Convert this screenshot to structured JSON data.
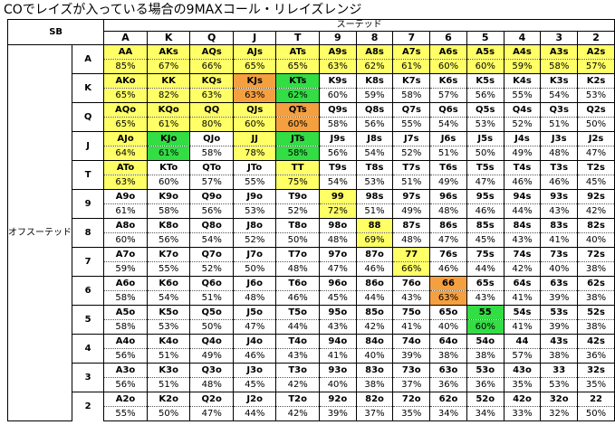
{
  "title": "COでレイズが入っている場合の9MAXコール・リレイズレンジ",
  "header": {
    "position": "SB",
    "suited_label": "スーテッド",
    "offsuit_label": "オフスーテッド"
  },
  "ranks": [
    "A",
    "K",
    "Q",
    "J",
    "T",
    "9",
    "8",
    "7",
    "6",
    "5",
    "4",
    "3",
    "2"
  ],
  "colors": {
    "yellow": "#ffff66",
    "orange": "#f4a040",
    "green": "#33dd44"
  },
  "rows": [
    {
      "label": "A",
      "cells": [
        {
          "h": "AA",
          "p": "85%",
          "c": "y"
        },
        {
          "h": "AKs",
          "p": "67%",
          "c": "y"
        },
        {
          "h": "AQs",
          "p": "66%",
          "c": "y"
        },
        {
          "h": "AJs",
          "p": "65%",
          "c": "y"
        },
        {
          "h": "ATs",
          "p": "65%",
          "c": "y"
        },
        {
          "h": "A9s",
          "p": "63%",
          "c": "y"
        },
        {
          "h": "A8s",
          "p": "62%",
          "c": "y"
        },
        {
          "h": "A7s",
          "p": "61%",
          "c": "y"
        },
        {
          "h": "A6s",
          "p": "60%",
          "c": "y"
        },
        {
          "h": "A5s",
          "p": "60%",
          "c": "y"
        },
        {
          "h": "A4s",
          "p": "59%",
          "c": "y"
        },
        {
          "h": "A3s",
          "p": "58%",
          "c": "y"
        },
        {
          "h": "A2s",
          "p": "57%",
          "c": "y"
        }
      ]
    },
    {
      "label": "K",
      "cells": [
        {
          "h": "AKo",
          "p": "65%",
          "c": "y"
        },
        {
          "h": "KK",
          "p": "82%",
          "c": "y"
        },
        {
          "h": "KQs",
          "p": "63%",
          "c": "y"
        },
        {
          "h": "KJs",
          "p": "63%",
          "c": "o"
        },
        {
          "h": "KTs",
          "p": "62%",
          "c": "g"
        },
        {
          "h": "K9s",
          "p": "60%",
          "c": ""
        },
        {
          "h": "K8s",
          "p": "59%",
          "c": ""
        },
        {
          "h": "K7s",
          "p": "58%",
          "c": ""
        },
        {
          "h": "K6s",
          "p": "57%",
          "c": ""
        },
        {
          "h": "K5s",
          "p": "56%",
          "c": ""
        },
        {
          "h": "K4s",
          "p": "55%",
          "c": ""
        },
        {
          "h": "K3s",
          "p": "54%",
          "c": ""
        },
        {
          "h": "K2s",
          "p": "53%",
          "c": ""
        }
      ]
    },
    {
      "label": "Q",
      "cells": [
        {
          "h": "AQo",
          "p": "65%",
          "c": "y"
        },
        {
          "h": "KQo",
          "p": "61%",
          "c": "y"
        },
        {
          "h": "QQ",
          "p": "80%",
          "c": "y"
        },
        {
          "h": "QJs",
          "p": "60%",
          "c": "y"
        },
        {
          "h": "QTs",
          "p": "60%",
          "c": "o"
        },
        {
          "h": "Q9s",
          "p": "58%",
          "c": ""
        },
        {
          "h": "Q8s",
          "p": "56%",
          "c": ""
        },
        {
          "h": "Q7s",
          "p": "55%",
          "c": ""
        },
        {
          "h": "Q6s",
          "p": "54%",
          "c": ""
        },
        {
          "h": "Q5s",
          "p": "53%",
          "c": ""
        },
        {
          "h": "Q4s",
          "p": "52%",
          "c": ""
        },
        {
          "h": "Q3s",
          "p": "51%",
          "c": ""
        },
        {
          "h": "Q2s",
          "p": "50%",
          "c": ""
        }
      ]
    },
    {
      "label": "J",
      "cells": [
        {
          "h": "AJo",
          "p": "64%",
          "c": "y"
        },
        {
          "h": "KJo",
          "p": "61%",
          "c": "g"
        },
        {
          "h": "QJo",
          "p": "58%",
          "c": ""
        },
        {
          "h": "JJ",
          "p": "78%",
          "c": "y"
        },
        {
          "h": "JTs",
          "p": "58%",
          "c": "g"
        },
        {
          "h": "J9s",
          "p": "56%",
          "c": ""
        },
        {
          "h": "J8s",
          "p": "54%",
          "c": ""
        },
        {
          "h": "J7s",
          "p": "52%",
          "c": ""
        },
        {
          "h": "J6s",
          "p": "51%",
          "c": ""
        },
        {
          "h": "J5s",
          "p": "50%",
          "c": ""
        },
        {
          "h": "J4s",
          "p": "49%",
          "c": ""
        },
        {
          "h": "J3s",
          "p": "48%",
          "c": ""
        },
        {
          "h": "J2s",
          "p": "47%",
          "c": ""
        }
      ]
    },
    {
      "label": "T",
      "cells": [
        {
          "h": "ATo",
          "p": "63%",
          "c": "y"
        },
        {
          "h": "KTo",
          "p": "60%",
          "c": ""
        },
        {
          "h": "QTo",
          "p": "57%",
          "c": ""
        },
        {
          "h": "JTo",
          "p": "55%",
          "c": ""
        },
        {
          "h": "TT",
          "p": "75%",
          "c": "y"
        },
        {
          "h": "T9s",
          "p": "54%",
          "c": ""
        },
        {
          "h": "T8s",
          "p": "53%",
          "c": ""
        },
        {
          "h": "T7s",
          "p": "51%",
          "c": ""
        },
        {
          "h": "T6s",
          "p": "49%",
          "c": ""
        },
        {
          "h": "T5s",
          "p": "47%",
          "c": ""
        },
        {
          "h": "T4s",
          "p": "46%",
          "c": ""
        },
        {
          "h": "T3s",
          "p": "46%",
          "c": ""
        },
        {
          "h": "T2s",
          "p": "45%",
          "c": ""
        }
      ]
    },
    {
      "label": "9",
      "cells": [
        {
          "h": "A9o",
          "p": "61%",
          "c": ""
        },
        {
          "h": "K9o",
          "p": "58%",
          "c": ""
        },
        {
          "h": "Q9o",
          "p": "56%",
          "c": ""
        },
        {
          "h": "J9o",
          "p": "53%",
          "c": ""
        },
        {
          "h": "T9o",
          "p": "52%",
          "c": ""
        },
        {
          "h": "99",
          "p": "72%",
          "c": "y"
        },
        {
          "h": "98s",
          "p": "51%",
          "c": ""
        },
        {
          "h": "97s",
          "p": "49%",
          "c": ""
        },
        {
          "h": "96s",
          "p": "48%",
          "c": ""
        },
        {
          "h": "95s",
          "p": "46%",
          "c": ""
        },
        {
          "h": "94s",
          "p": "44%",
          "c": ""
        },
        {
          "h": "93s",
          "p": "43%",
          "c": ""
        },
        {
          "h": "92s",
          "p": "42%",
          "c": ""
        }
      ]
    },
    {
      "label": "8",
      "cells": [
        {
          "h": "A8o",
          "p": "60%",
          "c": ""
        },
        {
          "h": "K8o",
          "p": "56%",
          "c": ""
        },
        {
          "h": "Q8o",
          "p": "54%",
          "c": ""
        },
        {
          "h": "J8o",
          "p": "52%",
          "c": ""
        },
        {
          "h": "T8o",
          "p": "50%",
          "c": ""
        },
        {
          "h": "98o",
          "p": "48%",
          "c": ""
        },
        {
          "h": "88",
          "p": "69%",
          "c": "y"
        },
        {
          "h": "87s",
          "p": "48%",
          "c": ""
        },
        {
          "h": "86s",
          "p": "47%",
          "c": ""
        },
        {
          "h": "85s",
          "p": "45%",
          "c": ""
        },
        {
          "h": "84s",
          "p": "43%",
          "c": ""
        },
        {
          "h": "83s",
          "p": "41%",
          "c": ""
        },
        {
          "h": "82s",
          "p": "40%",
          "c": ""
        }
      ]
    },
    {
      "label": "7",
      "cells": [
        {
          "h": "A7o",
          "p": "59%",
          "c": ""
        },
        {
          "h": "K7o",
          "p": "55%",
          "c": ""
        },
        {
          "h": "Q7o",
          "p": "52%",
          "c": ""
        },
        {
          "h": "J7o",
          "p": "50%",
          "c": ""
        },
        {
          "h": "T7o",
          "p": "48%",
          "c": ""
        },
        {
          "h": "97o",
          "p": "47%",
          "c": ""
        },
        {
          "h": "87o",
          "p": "46%",
          "c": ""
        },
        {
          "h": "77",
          "p": "66%",
          "c": "y"
        },
        {
          "h": "76s",
          "p": "46%",
          "c": ""
        },
        {
          "h": "75s",
          "p": "44%",
          "c": ""
        },
        {
          "h": "74s",
          "p": "42%",
          "c": ""
        },
        {
          "h": "73s",
          "p": "40%",
          "c": ""
        },
        {
          "h": "72s",
          "p": "38%",
          "c": ""
        }
      ]
    },
    {
      "label": "6",
      "cells": [
        {
          "h": "A6o",
          "p": "58%",
          "c": ""
        },
        {
          "h": "K6o",
          "p": "54%",
          "c": ""
        },
        {
          "h": "Q6o",
          "p": "51%",
          "c": ""
        },
        {
          "h": "J6o",
          "p": "48%",
          "c": ""
        },
        {
          "h": "T6o",
          "p": "46%",
          "c": ""
        },
        {
          "h": "96o",
          "p": "45%",
          "c": ""
        },
        {
          "h": "86o",
          "p": "44%",
          "c": ""
        },
        {
          "h": "76o",
          "p": "43%",
          "c": ""
        },
        {
          "h": "66",
          "p": "63%",
          "c": "o"
        },
        {
          "h": "65s",
          "p": "43%",
          "c": ""
        },
        {
          "h": "64s",
          "p": "41%",
          "c": ""
        },
        {
          "h": "63s",
          "p": "39%",
          "c": ""
        },
        {
          "h": "62s",
          "p": "38%",
          "c": ""
        }
      ]
    },
    {
      "label": "5",
      "cells": [
        {
          "h": "A5o",
          "p": "58%",
          "c": ""
        },
        {
          "h": "K5o",
          "p": "53%",
          "c": ""
        },
        {
          "h": "Q5o",
          "p": "50%",
          "c": ""
        },
        {
          "h": "J5o",
          "p": "47%",
          "c": ""
        },
        {
          "h": "T5o",
          "p": "44%",
          "c": ""
        },
        {
          "h": "95o",
          "p": "43%",
          "c": ""
        },
        {
          "h": "85o",
          "p": "42%",
          "c": ""
        },
        {
          "h": "75o",
          "p": "41%",
          "c": ""
        },
        {
          "h": "65o",
          "p": "40%",
          "c": ""
        },
        {
          "h": "55",
          "p": "60%",
          "c": "g"
        },
        {
          "h": "54s",
          "p": "41%",
          "c": ""
        },
        {
          "h": "53s",
          "p": "39%",
          "c": ""
        },
        {
          "h": "52s",
          "p": "38%",
          "c": ""
        }
      ]
    },
    {
      "label": "4",
      "cells": [
        {
          "h": "A4o",
          "p": "56%",
          "c": ""
        },
        {
          "h": "K4o",
          "p": "51%",
          "c": ""
        },
        {
          "h": "Q4o",
          "p": "49%",
          "c": ""
        },
        {
          "h": "J4o",
          "p": "46%",
          "c": ""
        },
        {
          "h": "T4o",
          "p": "43%",
          "c": ""
        },
        {
          "h": "94o",
          "p": "41%",
          "c": ""
        },
        {
          "h": "84o",
          "p": "40%",
          "c": ""
        },
        {
          "h": "74o",
          "p": "39%",
          "c": ""
        },
        {
          "h": "64o",
          "p": "38%",
          "c": ""
        },
        {
          "h": "54o",
          "p": "38%",
          "c": ""
        },
        {
          "h": "44",
          "p": "57%",
          "c": ""
        },
        {
          "h": "43s",
          "p": "38%",
          "c": ""
        },
        {
          "h": "42s",
          "p": "36%",
          "c": ""
        }
      ]
    },
    {
      "label": "3",
      "cells": [
        {
          "h": "A3o",
          "p": "56%",
          "c": ""
        },
        {
          "h": "K3o",
          "p": "51%",
          "c": ""
        },
        {
          "h": "Q3o",
          "p": "48%",
          "c": ""
        },
        {
          "h": "J3o",
          "p": "45%",
          "c": ""
        },
        {
          "h": "T3o",
          "p": "42%",
          "c": ""
        },
        {
          "h": "93o",
          "p": "40%",
          "c": ""
        },
        {
          "h": "83o",
          "p": "38%",
          "c": ""
        },
        {
          "h": "73o",
          "p": "37%",
          "c": ""
        },
        {
          "h": "63o",
          "p": "36%",
          "c": ""
        },
        {
          "h": "53o",
          "p": "36%",
          "c": ""
        },
        {
          "h": "43o",
          "p": "35%",
          "c": ""
        },
        {
          "h": "33",
          "p": "53%",
          "c": ""
        },
        {
          "h": "32s",
          "p": "35%",
          "c": ""
        }
      ]
    },
    {
      "label": "2",
      "cells": [
        {
          "h": "A2o",
          "p": "55%",
          "c": ""
        },
        {
          "h": "K2o",
          "p": "50%",
          "c": ""
        },
        {
          "h": "Q2o",
          "p": "47%",
          "c": ""
        },
        {
          "h": "J2o",
          "p": "44%",
          "c": ""
        },
        {
          "h": "T2o",
          "p": "42%",
          "c": ""
        },
        {
          "h": "92o",
          "p": "39%",
          "c": ""
        },
        {
          "h": "82o",
          "p": "37%",
          "c": ""
        },
        {
          "h": "72o",
          "p": "35%",
          "c": ""
        },
        {
          "h": "62o",
          "p": "34%",
          "c": ""
        },
        {
          "h": "52o",
          "p": "34%",
          "c": ""
        },
        {
          "h": "42o",
          "p": "33%",
          "c": ""
        },
        {
          "h": "32o",
          "p": "32%",
          "c": ""
        },
        {
          "h": "22",
          "p": "50%",
          "c": ""
        }
      ]
    }
  ]
}
